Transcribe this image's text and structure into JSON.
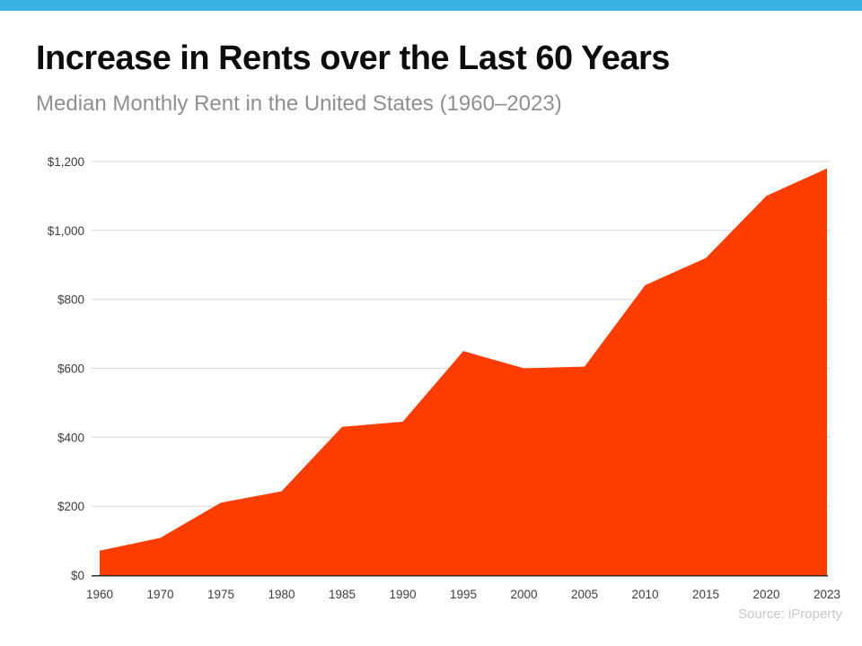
{
  "page": {
    "title": "Increase in Rents over the Last 60 Years",
    "subtitle": "Median Monthly Rent in the United States (1960–2023)",
    "source": "Source: iProperty",
    "accent_bar_color": "#3ab3e3"
  },
  "chart_data": {
    "type": "area",
    "title": "Increase in Rents over the Last 60 Years",
    "subtitle": "Median Monthly Rent in the United States (1960–2023)",
    "categories": [
      "1960",
      "1970",
      "1975",
      "1980",
      "1985",
      "1990",
      "1995",
      "2000",
      "2005",
      "2010",
      "2015",
      "2020",
      "2023"
    ],
    "values": [
      71,
      108,
      210,
      243,
      430,
      445,
      650,
      600,
      605,
      841,
      920,
      1100,
      1180
    ],
    "xlabel": "",
    "ylabel": "",
    "ylim": [
      0,
      1200
    ],
    "ytick_step": 200,
    "ytick_labels": [
      "$0",
      "$200",
      "$400",
      "$600",
      "$800",
      "$1,000",
      "$1,200"
    ],
    "grid": true,
    "legend": false,
    "area_color": "#ff3d00",
    "gridline_color": "#d9d9d9",
    "axis_line_color": "#2b2b2b",
    "tick_label_color": "#3d3d3d",
    "source": "Source: iProperty"
  }
}
